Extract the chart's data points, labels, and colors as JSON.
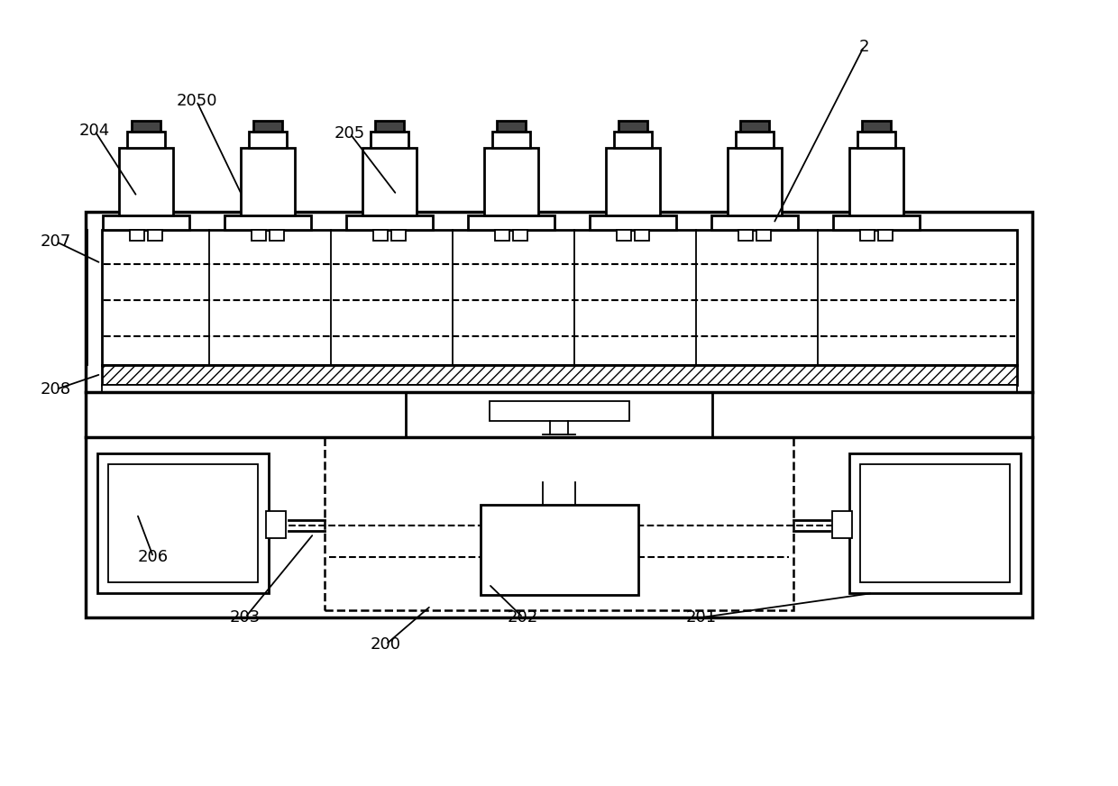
{
  "bg_color": "#ffffff",
  "lc": "#000000",
  "fig_width": 12.4,
  "fig_height": 8.72,
  "lw_thick": 2.5,
  "lw_med": 2.0,
  "lw_thin": 1.3,
  "lw_dash": 1.5,
  "annotations": [
    [
      "2",
      958,
      52,
      858,
      248
    ],
    [
      "204",
      105,
      145,
      152,
      218
    ],
    [
      "2050",
      218,
      112,
      268,
      216
    ],
    [
      "205",
      388,
      148,
      440,
      216
    ],
    [
      "207",
      62,
      268,
      112,
      292
    ],
    [
      "208",
      62,
      432,
      112,
      415
    ],
    [
      "206",
      170,
      618,
      152,
      570
    ],
    [
      "203",
      272,
      685,
      348,
      592
    ],
    [
      "200",
      428,
      715,
      478,
      672
    ],
    [
      "202",
      580,
      685,
      542,
      648
    ],
    [
      "201",
      778,
      685,
      968,
      658
    ]
  ]
}
